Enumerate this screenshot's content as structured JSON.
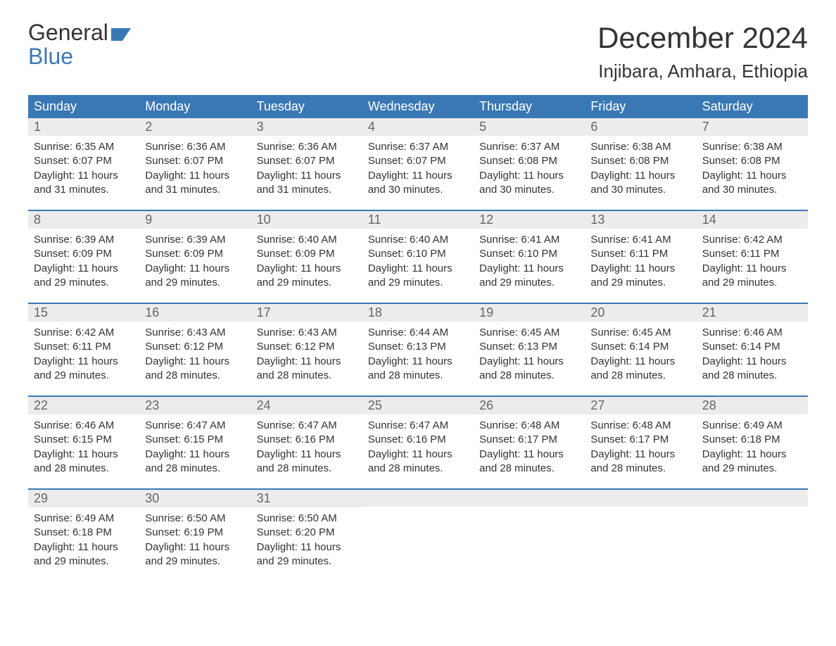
{
  "brand": {
    "word1": "General",
    "word2": "Blue",
    "logo_color": "#3a78b5"
  },
  "header": {
    "month_title": "December 2024",
    "location": "Injibara, Amhara, Ethiopia"
  },
  "styling": {
    "header_bg": "#3a78b5",
    "header_text": "#ffffff",
    "daynum_bg": "#ececec",
    "daynum_text": "#666666",
    "week_border": "#3a78b5",
    "body_text": "#333333",
    "page_bg": "#ffffff",
    "weekday_fontsize": 18,
    "month_fontsize": 42,
    "location_fontsize": 26,
    "cell_fontsize": 15
  },
  "weekdays": [
    "Sunday",
    "Monday",
    "Tuesday",
    "Wednesday",
    "Thursday",
    "Friday",
    "Saturday"
  ],
  "labels": {
    "sunrise": "Sunrise: ",
    "sunset": "Sunset: ",
    "daylight_prefix": "Daylight: ",
    "daylight_join": " and ",
    "daylight_suffix": "."
  },
  "weeks": [
    [
      {
        "n": "1",
        "sunrise": "6:35 AM",
        "sunset": "6:07 PM",
        "dl_h": "11 hours",
        "dl_m": "31 minutes"
      },
      {
        "n": "2",
        "sunrise": "6:36 AM",
        "sunset": "6:07 PM",
        "dl_h": "11 hours",
        "dl_m": "31 minutes"
      },
      {
        "n": "3",
        "sunrise": "6:36 AM",
        "sunset": "6:07 PM",
        "dl_h": "11 hours",
        "dl_m": "31 minutes"
      },
      {
        "n": "4",
        "sunrise": "6:37 AM",
        "sunset": "6:07 PM",
        "dl_h": "11 hours",
        "dl_m": "30 minutes"
      },
      {
        "n": "5",
        "sunrise": "6:37 AM",
        "sunset": "6:08 PM",
        "dl_h": "11 hours",
        "dl_m": "30 minutes"
      },
      {
        "n": "6",
        "sunrise": "6:38 AM",
        "sunset": "6:08 PM",
        "dl_h": "11 hours",
        "dl_m": "30 minutes"
      },
      {
        "n": "7",
        "sunrise": "6:38 AM",
        "sunset": "6:08 PM",
        "dl_h": "11 hours",
        "dl_m": "30 minutes"
      }
    ],
    [
      {
        "n": "8",
        "sunrise": "6:39 AM",
        "sunset": "6:09 PM",
        "dl_h": "11 hours",
        "dl_m": "29 minutes"
      },
      {
        "n": "9",
        "sunrise": "6:39 AM",
        "sunset": "6:09 PM",
        "dl_h": "11 hours",
        "dl_m": "29 minutes"
      },
      {
        "n": "10",
        "sunrise": "6:40 AM",
        "sunset": "6:09 PM",
        "dl_h": "11 hours",
        "dl_m": "29 minutes"
      },
      {
        "n": "11",
        "sunrise": "6:40 AM",
        "sunset": "6:10 PM",
        "dl_h": "11 hours",
        "dl_m": "29 minutes"
      },
      {
        "n": "12",
        "sunrise": "6:41 AM",
        "sunset": "6:10 PM",
        "dl_h": "11 hours",
        "dl_m": "29 minutes"
      },
      {
        "n": "13",
        "sunrise": "6:41 AM",
        "sunset": "6:11 PM",
        "dl_h": "11 hours",
        "dl_m": "29 minutes"
      },
      {
        "n": "14",
        "sunrise": "6:42 AM",
        "sunset": "6:11 PM",
        "dl_h": "11 hours",
        "dl_m": "29 minutes"
      }
    ],
    [
      {
        "n": "15",
        "sunrise": "6:42 AM",
        "sunset": "6:11 PM",
        "dl_h": "11 hours",
        "dl_m": "29 minutes"
      },
      {
        "n": "16",
        "sunrise": "6:43 AM",
        "sunset": "6:12 PM",
        "dl_h": "11 hours",
        "dl_m": "28 minutes"
      },
      {
        "n": "17",
        "sunrise": "6:43 AM",
        "sunset": "6:12 PM",
        "dl_h": "11 hours",
        "dl_m": "28 minutes"
      },
      {
        "n": "18",
        "sunrise": "6:44 AM",
        "sunset": "6:13 PM",
        "dl_h": "11 hours",
        "dl_m": "28 minutes"
      },
      {
        "n": "19",
        "sunrise": "6:45 AM",
        "sunset": "6:13 PM",
        "dl_h": "11 hours",
        "dl_m": "28 minutes"
      },
      {
        "n": "20",
        "sunrise": "6:45 AM",
        "sunset": "6:14 PM",
        "dl_h": "11 hours",
        "dl_m": "28 minutes"
      },
      {
        "n": "21",
        "sunrise": "6:46 AM",
        "sunset": "6:14 PM",
        "dl_h": "11 hours",
        "dl_m": "28 minutes"
      }
    ],
    [
      {
        "n": "22",
        "sunrise": "6:46 AM",
        "sunset": "6:15 PM",
        "dl_h": "11 hours",
        "dl_m": "28 minutes"
      },
      {
        "n": "23",
        "sunrise": "6:47 AM",
        "sunset": "6:15 PM",
        "dl_h": "11 hours",
        "dl_m": "28 minutes"
      },
      {
        "n": "24",
        "sunrise": "6:47 AM",
        "sunset": "6:16 PM",
        "dl_h": "11 hours",
        "dl_m": "28 minutes"
      },
      {
        "n": "25",
        "sunrise": "6:47 AM",
        "sunset": "6:16 PM",
        "dl_h": "11 hours",
        "dl_m": "28 minutes"
      },
      {
        "n": "26",
        "sunrise": "6:48 AM",
        "sunset": "6:17 PM",
        "dl_h": "11 hours",
        "dl_m": "28 minutes"
      },
      {
        "n": "27",
        "sunrise": "6:48 AM",
        "sunset": "6:17 PM",
        "dl_h": "11 hours",
        "dl_m": "28 minutes"
      },
      {
        "n": "28",
        "sunrise": "6:49 AM",
        "sunset": "6:18 PM",
        "dl_h": "11 hours",
        "dl_m": "29 minutes"
      }
    ],
    [
      {
        "n": "29",
        "sunrise": "6:49 AM",
        "sunset": "6:18 PM",
        "dl_h": "11 hours",
        "dl_m": "29 minutes"
      },
      {
        "n": "30",
        "sunrise": "6:50 AM",
        "sunset": "6:19 PM",
        "dl_h": "11 hours",
        "dl_m": "29 minutes"
      },
      {
        "n": "31",
        "sunrise": "6:50 AM",
        "sunset": "6:20 PM",
        "dl_h": "11 hours",
        "dl_m": "29 minutes"
      },
      null,
      null,
      null,
      null
    ]
  ]
}
